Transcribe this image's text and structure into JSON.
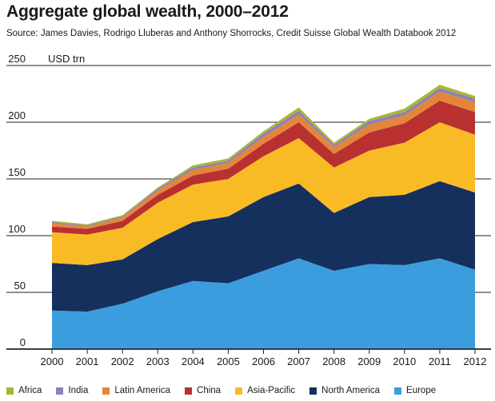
{
  "title": "Aggregate global wealth, 2000–2012",
  "source": "Source: James Davies, Rodrigo Lluberas and Anthony Shorrocks, Credit Suisse Global Wealth Databook 2012",
  "chart_data": {
    "type": "area",
    "stacked": true,
    "title": "Aggregate global wealth, 2000–2012",
    "ylabel": "USD trn",
    "ylim": [
      0,
      250
    ],
    "yticks": [
      0,
      50,
      100,
      150,
      200,
      250
    ],
    "grid": true,
    "legend_position": "bottom",
    "x": [
      "2000",
      "2001",
      "2002",
      "2003",
      "2004",
      "2005",
      "2006",
      "2007",
      "2008",
      "2009",
      "2010",
      "2011",
      "2012"
    ],
    "series": [
      {
        "name": "Europe",
        "color": "#3b9ddd",
        "values": [
          34,
          33,
          40,
          51,
          60,
          58,
          69,
          80,
          69,
          75,
          74,
          80,
          70
        ]
      },
      {
        "name": "North America",
        "color": "#15305d",
        "values": [
          42,
          41,
          39,
          46,
          52,
          59,
          65,
          66,
          51,
          59,
          62,
          68,
          68
        ]
      },
      {
        "name": "Asia-Pacific",
        "color": "#f9bb25",
        "values": [
          27,
          27,
          28,
          32,
          33,
          33,
          36,
          40,
          40,
          41,
          46,
          52,
          51
        ]
      },
      {
        "name": "China",
        "color": "#b83130",
        "values": [
          5,
          5,
          6,
          7,
          8,
          9,
          11,
          14,
          12,
          16,
          17,
          19,
          20
        ]
      },
      {
        "name": "Latin America",
        "color": "#e5853a",
        "values": [
          3,
          2,
          3,
          4,
          5,
          5,
          6,
          7,
          6,
          7,
          7,
          8,
          9
        ]
      },
      {
        "name": "India",
        "color": "#8c81b8",
        "values": [
          1,
          1,
          1,
          1.5,
          2,
          2,
          3,
          3,
          2,
          3,
          3,
          3,
          3
        ]
      },
      {
        "name": "Africa",
        "color": "#a8b534",
        "values": [
          1,
          1,
          1,
          1,
          2,
          2,
          2,
          3,
          2,
          2,
          3,
          3,
          2
        ]
      }
    ]
  },
  "legend_order": [
    "Africa",
    "India",
    "Latin America",
    "China",
    "Asia-Pacific",
    "North America",
    "Europe"
  ]
}
